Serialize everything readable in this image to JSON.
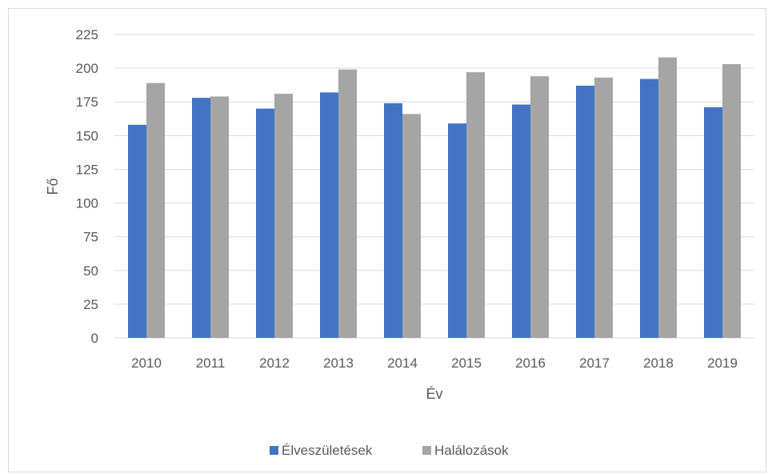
{
  "chart_data": {
    "type": "bar",
    "title": "",
    "xlabel": "Év",
    "ylabel": "Fő",
    "categories": [
      "2010",
      "2011",
      "2012",
      "2013",
      "2014",
      "2015",
      "2016",
      "2017",
      "2018",
      "2019"
    ],
    "series": [
      {
        "name": "Élveszületések",
        "color": "#4472c4",
        "values": [
          158,
          178,
          170,
          182,
          174,
          159,
          173,
          187,
          192,
          171
        ]
      },
      {
        "name": "Halálozások",
        "color": "#a5a5a5",
        "values": [
          189,
          179,
          181,
          199,
          166,
          197,
          194,
          193,
          208,
          203
        ]
      }
    ],
    "ylim": [
      0,
      225
    ],
    "yticks": [
      0,
      25,
      50,
      75,
      100,
      125,
      150,
      175,
      200,
      225
    ],
    "grid": true,
    "legend_position": "bottom"
  }
}
